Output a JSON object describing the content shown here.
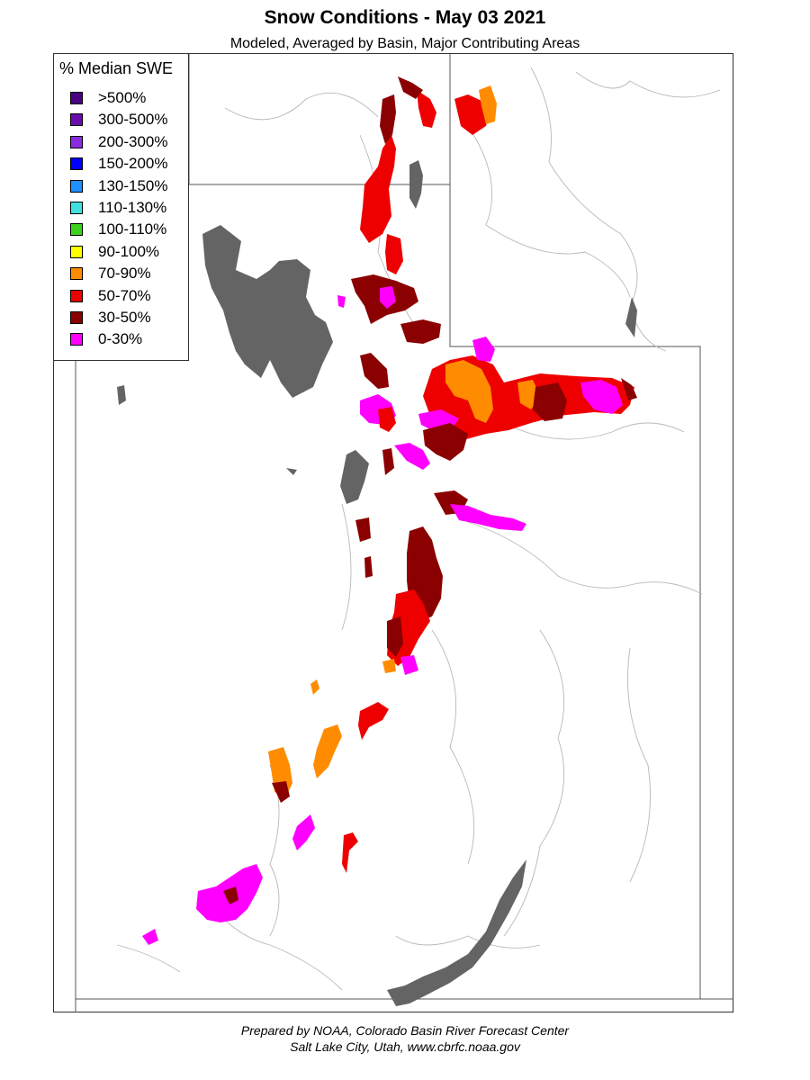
{
  "header": {
    "title": "Snow Conditions - May 03 2021",
    "subtitle": "Modeled, Averaged by Basin, Major Contributing Areas"
  },
  "legend": {
    "title": "% Median SWE",
    "items": [
      {
        "label": ">500%",
        "color": "#4b0082"
      },
      {
        "label": "300-500%",
        "color": "#6a0dad"
      },
      {
        "label": "200-300%",
        "color": "#8a2be2"
      },
      {
        "label": "150-200%",
        "color": "#0000ff"
      },
      {
        "label": "130-150%",
        "color": "#1e90ff"
      },
      {
        "label": "110-130%",
        "color": "#40e0e0"
      },
      {
        "label": "100-110%",
        "color": "#3cd21e"
      },
      {
        "label": "90-100%",
        "color": "#ffff00"
      },
      {
        "label": "70-90%",
        "color": "#ff8c00"
      },
      {
        "label": "50-70%",
        "color": "#ee0000"
      },
      {
        "label": "30-50%",
        "color": "#8b0000"
      },
      {
        "label": "0-30%",
        "color": "#ff00ff"
      }
    ]
  },
  "map": {
    "water_color": "#646464",
    "boundary_color": "#555555",
    "river_color": "#b4b4b4"
  },
  "footer": {
    "line1": "Prepared by NOAA, Colorado Basin River Forecast Center",
    "line2": "Salt Lake City, Utah, www.cbrfc.noaa.gov"
  }
}
